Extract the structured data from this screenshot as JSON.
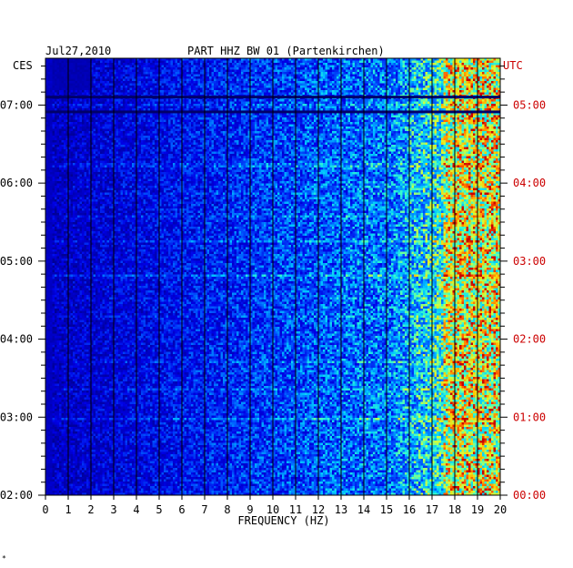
{
  "chart_data": {
    "type": "heatmap",
    "title_date": "Jul27,2010",
    "title_station": "PART HHZ BW 01 (Partenkirchen)",
    "left_timezone": "CES",
    "right_timezone": "UTC",
    "xlabel": "FREQUENCY (HZ)",
    "x_range": [
      0,
      20
    ],
    "x_ticks": [
      "0",
      "1",
      "2",
      "3",
      "4",
      "5",
      "6",
      "7",
      "8",
      "9",
      "10",
      "11",
      "12",
      "13",
      "14",
      "15",
      "16",
      "17",
      "18",
      "19",
      "20"
    ],
    "y_range_hours_local": [
      2.0,
      7.6
    ],
    "left_time_ticks": [
      {
        "label": "07:00",
        "hour": 7
      },
      {
        "label": "06:00",
        "hour": 6
      },
      {
        "label": "05:00",
        "hour": 5
      },
      {
        "label": "04:00",
        "hour": 4
      },
      {
        "label": "03:00",
        "hour": 3
      },
      {
        "label": "02:00",
        "hour": 2
      }
    ],
    "right_time_ticks": [
      {
        "label": "05:00",
        "hour": 7
      },
      {
        "label": "04:00",
        "hour": 6
      },
      {
        "label": "03:00",
        "hour": 5
      },
      {
        "label": "02:00",
        "hour": 4
      },
      {
        "label": "01:00",
        "hour": 3
      },
      {
        "label": "00:00",
        "hour": 2
      }
    ],
    "data_gaps_hours_local": [
      {
        "from": 7.09,
        "to": 7.12
      },
      {
        "from": 6.9,
        "to": 6.93
      }
    ],
    "early_data_gap": {
      "hours_from": 7.2,
      "freq_to": 2.0
    },
    "colors": {
      "axis": "#000000",
      "right_labels": "#cc0000",
      "low": "#0000a8",
      "high": "#ff0000"
    }
  },
  "footer_mark": "*"
}
